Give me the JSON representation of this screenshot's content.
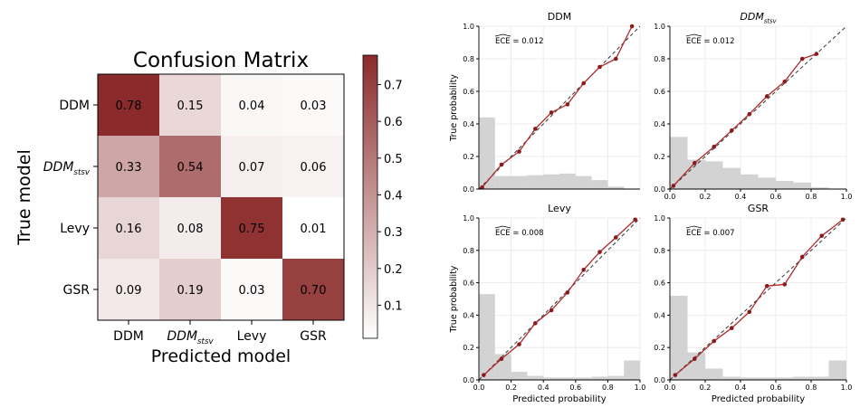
{
  "chart_data": [
    {
      "type": "heatmap",
      "title": "Confusion Matrix",
      "xlabel": "Predicted model",
      "ylabel": "True model",
      "categories": [
        {
          "base": "DDM",
          "sub": ""
        },
        {
          "base": "DDM",
          "sub": "stsv"
        },
        {
          "base": "Levy",
          "sub": ""
        },
        {
          "base": "GSR",
          "sub": ""
        }
      ],
      "values": [
        [
          0.78,
          0.15,
          0.04,
          0.03
        ],
        [
          0.33,
          0.54,
          0.07,
          0.06
        ],
        [
          0.16,
          0.08,
          0.75,
          0.01
        ],
        [
          0.09,
          0.19,
          0.03,
          0.7
        ]
      ],
      "cell_labels": [
        [
          "0.78",
          "0.15",
          "0.04",
          "0.03"
        ],
        [
          "0.33",
          "0.54",
          "0.07",
          "0.06"
        ],
        [
          "0.16",
          "0.08",
          "0.75",
          "0.01"
        ],
        [
          "0.09",
          "0.19",
          "0.03",
          "0.70"
        ]
      ],
      "colorbar": {
        "ticks": [
          "0.1",
          "0.2",
          "0.3",
          "0.4",
          "0.5",
          "0.6",
          "0.7"
        ],
        "range": [
          0.01,
          0.78
        ],
        "color_low": "#ffffff",
        "color_high": "#8b2a2a"
      }
    },
    {
      "type": "line",
      "title": {
        "base": "DDM",
        "sub": ""
      },
      "annotation": "ECE = 0.012",
      "x": [
        0.02,
        0.14,
        0.25,
        0.35,
        0.45,
        0.55,
        0.65,
        0.75,
        0.85,
        0.95
      ],
      "y": [
        0.01,
        0.15,
        0.23,
        0.37,
        0.47,
        0.52,
        0.65,
        0.75,
        0.8,
        1.0
      ],
      "histogram": [
        0.44,
        0.08,
        0.08,
        0.085,
        0.09,
        0.095,
        0.08,
        0.055,
        0.015,
        0.0
      ],
      "xlabel": "",
      "ylabel": "True probability",
      "xlim": [
        0,
        1
      ],
      "ylim": [
        0,
        1
      ],
      "xticks": [],
      "yticks": [
        "0.0",
        "0.2",
        "0.4",
        "0.6",
        "0.8",
        "1.0"
      ]
    },
    {
      "type": "line",
      "title": {
        "base": "DDM",
        "sub": "stsv"
      },
      "annotation": "ECE = 0.012",
      "x": [
        0.02,
        0.14,
        0.25,
        0.35,
        0.45,
        0.55,
        0.65,
        0.75,
        0.83
      ],
      "y": [
        0.02,
        0.16,
        0.26,
        0.36,
        0.46,
        0.57,
        0.66,
        0.8,
        0.83
      ],
      "histogram": [
        0.32,
        0.18,
        0.17,
        0.13,
        0.09,
        0.07,
        0.05,
        0.04,
        0.01,
        0.0
      ],
      "xlabel": "",
      "ylabel": "",
      "xlim": [
        0,
        1
      ],
      "ylim": [
        0,
        1
      ],
      "xticks": [
        "0.0",
        "0.2",
        "0.4",
        "0.6",
        "0.8",
        "1.0"
      ],
      "yticks": [
        "0.0",
        "0.2",
        "0.4",
        "0.6",
        "0.8",
        "1.0"
      ]
    },
    {
      "type": "line",
      "title": {
        "base": "Levy",
        "sub": ""
      },
      "annotation": "ECE = 0.008",
      "x": [
        0.03,
        0.14,
        0.25,
        0.35,
        0.45,
        0.55,
        0.65,
        0.75,
        0.85,
        0.97
      ],
      "y": [
        0.03,
        0.13,
        0.22,
        0.35,
        0.43,
        0.54,
        0.68,
        0.79,
        0.88,
        0.99
      ],
      "histogram": [
        0.53,
        0.16,
        0.05,
        0.025,
        0.015,
        0.015,
        0.015,
        0.02,
        0.025,
        0.12
      ],
      "xlabel": "Predicted probability",
      "ylabel": "True probability",
      "xlim": [
        0,
        1
      ],
      "ylim": [
        0,
        1
      ],
      "xticks": [
        "0.0",
        "0.2",
        "0.4",
        "0.6",
        "0.8",
        "1.0"
      ],
      "yticks": [
        "0.0",
        "0.2",
        "0.4",
        "0.6",
        "0.8",
        "1.0"
      ]
    },
    {
      "type": "line",
      "title": {
        "base": "GSR",
        "sub": ""
      },
      "annotation": "ECE = 0.007",
      "x": [
        0.03,
        0.14,
        0.25,
        0.35,
        0.45,
        0.55,
        0.65,
        0.75,
        0.86,
        0.98
      ],
      "y": [
        0.03,
        0.13,
        0.24,
        0.32,
        0.42,
        0.58,
        0.59,
        0.76,
        0.89,
        0.99
      ],
      "histogram": [
        0.52,
        0.17,
        0.07,
        0.02,
        0.015,
        0.015,
        0.015,
        0.02,
        0.02,
        0.12
      ],
      "xlabel": "Predicted probability",
      "ylabel": "",
      "xlim": [
        0,
        1
      ],
      "ylim": [
        0,
        1
      ],
      "xticks": [
        "0.0",
        "0.2",
        "0.4",
        "0.6",
        "0.8",
        "1.0"
      ],
      "yticks": [
        "0.0",
        "0.2",
        "0.4",
        "0.6",
        "0.8",
        "1.0"
      ]
    }
  ],
  "colors": {
    "line": "#b02a2a",
    "marker": "#8b1a1a",
    "diagonal": "#333333",
    "histogram": "#d3d3d3",
    "grid": "#e8e8e8",
    "axis": "#000000",
    "cell_text_light": "#ffffff",
    "cell_text_dark": "#000000"
  }
}
